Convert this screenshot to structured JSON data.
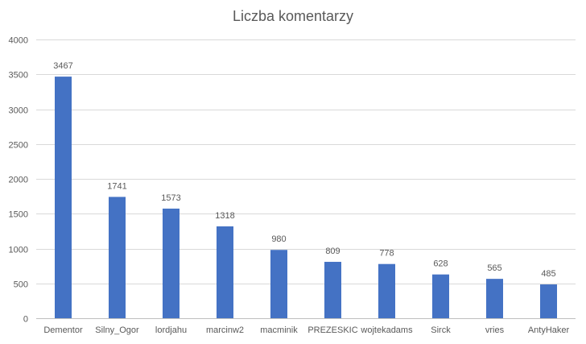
{
  "chart_data": {
    "type": "bar",
    "title": "Liczba komentarzy",
    "xlabel": "",
    "ylabel": "",
    "categories": [
      "Dementor",
      "Silny_Ogor",
      "lordjahu",
      "marcinw2",
      "macminik",
      "PREZESKIC",
      "wojtekadams",
      "Sirck",
      "vries",
      "AntyHaker"
    ],
    "values": [
      3467,
      1741,
      1573,
      1318,
      980,
      809,
      778,
      628,
      565,
      485
    ],
    "ylim": [
      0,
      4000
    ],
    "yticks": [
      0,
      500,
      1000,
      1500,
      2000,
      2500,
      3000,
      3500,
      4000
    ],
    "grid": true,
    "legend": "none",
    "bar_color": "#4472c4"
  }
}
